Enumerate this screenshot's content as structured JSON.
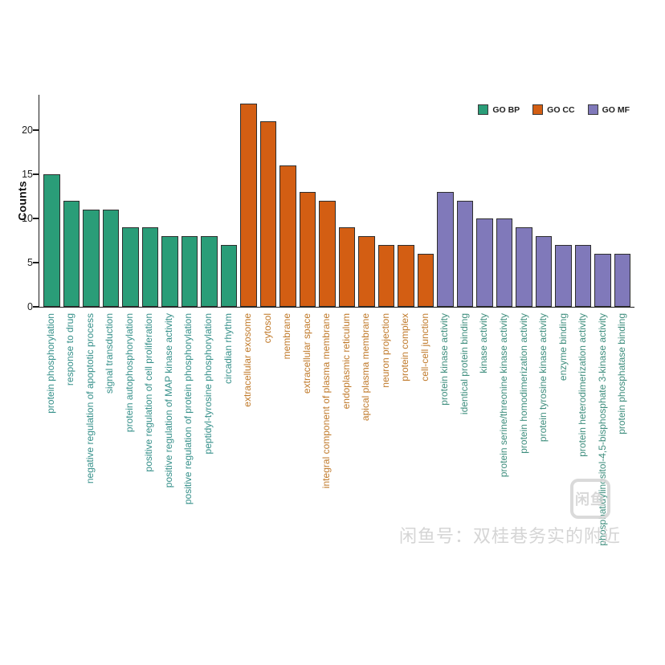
{
  "watermark": {
    "logo_text": "闲鱼",
    "caption": "闲鱼号：双桂巷务实的附近"
  },
  "chart_data": {
    "type": "bar",
    "title": "",
    "xlabel": "",
    "ylabel": "Counts",
    "ylim": [
      0,
      24
    ],
    "yticks": [
      0,
      5,
      10,
      15,
      20
    ],
    "grid": false,
    "legend_position": "top-right-inside",
    "legend": [
      {
        "label": "GO BP",
        "color": "#2a9d78"
      },
      {
        "label": "GO CC",
        "color": "#d35e13"
      },
      {
        "label": "GO MF",
        "color": "#8079ba"
      }
    ],
    "groups": [
      {
        "name": "GO BP",
        "color": "#2a9d78",
        "label_color": "#36908a",
        "items": [
          {
            "label": "protein phosphorylation",
            "value": 15
          },
          {
            "label": "response to drug",
            "value": 12
          },
          {
            "label": "negative regulation of apoptotic process",
            "value": 11
          },
          {
            "label": "signal transduction",
            "value": 11
          },
          {
            "label": "protein autophosphorylation",
            "value": 9
          },
          {
            "label": "positive regulation of cell proliferation",
            "value": 9
          },
          {
            "label": "positive regulation of MAP kinase activity",
            "value": 8
          },
          {
            "label": "positive regulation of protein phosphorylation",
            "value": 8
          },
          {
            "label": "peptidyl-tyrosine phosphorylation",
            "value": 8
          },
          {
            "label": "circadian rhythm",
            "value": 7
          }
        ]
      },
      {
        "name": "GO CC",
        "color": "#d35e13",
        "label_color": "#c07a2b",
        "items": [
          {
            "label": "extracellular exosome",
            "value": 23
          },
          {
            "label": "cytosol",
            "value": 21
          },
          {
            "label": "membrane",
            "value": 16
          },
          {
            "label": "extracellular space",
            "value": 13
          },
          {
            "label": "integral component of plasma membrane",
            "value": 12
          },
          {
            "label": "endoplasmic reticulum",
            "value": 9
          },
          {
            "label": "apical plasma membrane",
            "value": 8
          },
          {
            "label": "neuron projection",
            "value": 7
          },
          {
            "label": "protein complex",
            "value": 7
          },
          {
            "label": "cell-cell junction",
            "value": 6
          }
        ]
      },
      {
        "name": "GO MF",
        "color": "#8079ba",
        "label_color": "#3f8e7e",
        "items": [
          {
            "label": "protein kinase activity",
            "value": 13
          },
          {
            "label": "identical protein binding",
            "value": 12
          },
          {
            "label": "kinase activity",
            "value": 10
          },
          {
            "label": "protein serine/threonine kinase activity",
            "value": 10
          },
          {
            "label": "protein homodimerization activity",
            "value": 9
          },
          {
            "label": "protein tyrosine kinase activity",
            "value": 8
          },
          {
            "label": "enzyme binding",
            "value": 7
          },
          {
            "label": "protein heterodimerization activity",
            "value": 7
          },
          {
            "label": "phosphatidylinositol-4,5-bisphosphate 3-kinase activity",
            "value": 6
          },
          {
            "label": "protein phosphatase binding",
            "value": 6
          }
        ]
      }
    ]
  }
}
